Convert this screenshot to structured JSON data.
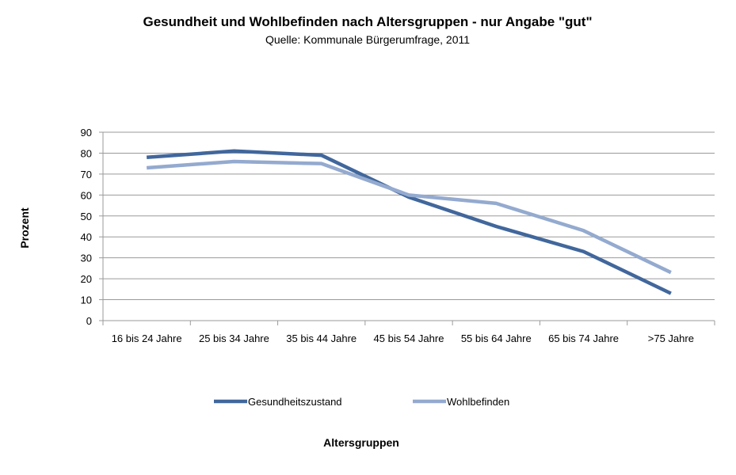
{
  "chart_data": {
    "type": "line",
    "title": "Gesundheit und Wohlbefinden nach Altersgruppen - nur Angabe \"gut\"",
    "subtitle": "Quelle: Kommunale Bürgerumfrage, 2011",
    "xlabel": "Altersgruppen",
    "ylabel": "Prozent",
    "categories": [
      "16 bis 24 Jahre",
      "25 bis 34 Jahre",
      "35 bis 44 Jahre",
      "45 bis 54 Jahre",
      "55 bis 64 Jahre",
      "65 bis 74 Jahre",
      ">75 Jahre"
    ],
    "ylim": [
      0,
      90
    ],
    "yticks": [
      0,
      10,
      20,
      30,
      40,
      50,
      60,
      70,
      80,
      90
    ],
    "grid": true,
    "legend_position": "bottom",
    "series": [
      {
        "name": "Gesundheitszustand",
        "color": "#41679c",
        "values": [
          78,
          81,
          79,
          59,
          45,
          33,
          13
        ]
      },
      {
        "name": "Wohlbefinden",
        "color": "#94aacf",
        "values": [
          73,
          76,
          75,
          60,
          56,
          43,
          23
        ]
      }
    ]
  }
}
